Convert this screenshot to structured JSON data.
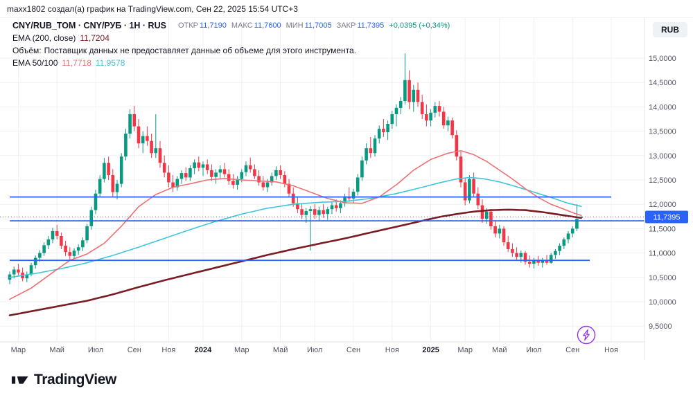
{
  "topbar": {
    "text": "maxx1802 создал(а) график на TradingView.com, Сен 22, 2025 15:54 UTC+3"
  },
  "header": {
    "symbol": "CNY/RUB_TOM · CNY/РУБ · 1Н · RUS",
    "ohlc": [
      {
        "label": "ОТКР",
        "value": "11,7190"
      },
      {
        "label": "МАКС",
        "value": "11,7600"
      },
      {
        "label": "МИН",
        "value": "11,7005"
      },
      {
        "label": "ЗАКР",
        "value": "11,7395"
      }
    ],
    "change": "+0,0395 (+0,34%)",
    "ema200": {
      "label": "EMA (200, close)",
      "value": "11,7204"
    },
    "volume": {
      "label": "Объём:",
      "message": "Поставщик данных не предоставляет данные об объеме для этого инструмента."
    },
    "ema50100": {
      "label": "EMA 50/100",
      "value50": "11,7718",
      "value100": "11,9578"
    }
  },
  "axis": {
    "currency_button": "RUB"
  },
  "footer": {
    "brand": "TradingView"
  },
  "icons": {
    "lightning_button": "lightning-bolt-in-circle",
    "logo_mark": "tradingview-logomark"
  },
  "colors": {
    "up": "#089981",
    "down": "#f23645",
    "accent_blue": "#2962ff",
    "accent_purple": "#9333ea",
    "ema50": "#ee7073",
    "ema100": "#3ec6da",
    "ema200": "#7a1c24",
    "grid": "#eef0f6",
    "axis_text": "#50535e",
    "axis_line": "#e0e3eb"
  },
  "chart_data": {
    "type": "candlestick",
    "symbol": "CNY/RUB_TOM",
    "timeframe": "1Н",
    "ylim": [
      9.2,
      15.4
    ],
    "grid": true,
    "last_price": 11.7395,
    "last_price_label": "11,7395",
    "y_ticks": [
      {
        "label": "15,0000",
        "value": 15.0
      },
      {
        "label": "14,5000",
        "value": 14.5
      },
      {
        "label": "14,0000",
        "value": 14.0
      },
      {
        "label": "13,5000",
        "value": 13.5
      },
      {
        "label": "13,0000",
        "value": 13.0
      },
      {
        "label": "12,5000",
        "value": 12.5
      },
      {
        "label": "12,0000",
        "value": 12.0
      },
      {
        "label": "11,5000",
        "value": 11.5
      },
      {
        "label": "11,0000",
        "value": 11.0
      },
      {
        "label": "10,5000",
        "value": 10.5
      },
      {
        "label": "10,0000",
        "value": 10.0
      },
      {
        "label": "9,5000",
        "value": 9.5
      }
    ],
    "x_labels": [
      {
        "label": "Мар",
        "idx": 2
      },
      {
        "label": "Май",
        "idx": 11
      },
      {
        "label": "Июл",
        "idx": 20
      },
      {
        "label": "Сен",
        "idx": 29
      },
      {
        "label": "Ноя",
        "idx": 37
      },
      {
        "label": "2024",
        "idx": 45
      },
      {
        "label": "Мар",
        "idx": 54
      },
      {
        "label": "Май",
        "idx": 63
      },
      {
        "label": "Июл",
        "idx": 71
      },
      {
        "label": "Сен",
        "idx": 80
      },
      {
        "label": "Ноя",
        "idx": 89
      },
      {
        "label": "2025",
        "idx": 98
      },
      {
        "label": "Мар",
        "idx": 106
      },
      {
        "label": "Май",
        "idx": 114
      },
      {
        "label": "Июл",
        "idx": 122
      },
      {
        "label": "Сен",
        "idx": 131
      },
      {
        "label": "Ноя",
        "idx": 140
      }
    ],
    "candles": [
      [
        10.45,
        10.62,
        10.36,
        10.56
      ],
      [
        10.56,
        10.72,
        10.48,
        10.66
      ],
      [
        10.66,
        10.78,
        10.54,
        10.6
      ],
      [
        10.6,
        10.7,
        10.42,
        10.48
      ],
      [
        10.48,
        10.62,
        10.4,
        10.56
      ],
      [
        10.56,
        10.8,
        10.52,
        10.75
      ],
      [
        10.75,
        10.95,
        10.68,
        10.9
      ],
      [
        10.9,
        11.06,
        10.82,
        11.0
      ],
      [
        11.0,
        11.22,
        10.94,
        11.16
      ],
      [
        11.16,
        11.35,
        11.08,
        11.28
      ],
      [
        11.28,
        11.52,
        11.2,
        11.45
      ],
      [
        11.45,
        11.58,
        11.28,
        11.35
      ],
      [
        11.35,
        11.42,
        11.08,
        11.15
      ],
      [
        11.15,
        11.25,
        10.94,
        11.02
      ],
      [
        11.02,
        11.12,
        10.86,
        10.94
      ],
      [
        10.94,
        11.1,
        10.88,
        11.05
      ],
      [
        11.05,
        11.18,
        10.96,
        11.12
      ],
      [
        11.12,
        11.32,
        11.04,
        11.26
      ],
      [
        11.26,
        11.6,
        11.2,
        11.55
      ],
      [
        11.55,
        11.95,
        11.48,
        11.88
      ],
      [
        11.88,
        12.3,
        11.8,
        12.22
      ],
      [
        12.22,
        12.6,
        12.15,
        12.52
      ],
      [
        12.52,
        12.95,
        12.45,
        12.85
      ],
      [
        12.85,
        12.98,
        12.5,
        12.6
      ],
      [
        12.6,
        12.72,
        12.15,
        12.25
      ],
      [
        12.25,
        12.5,
        12.1,
        12.42
      ],
      [
        12.42,
        13.05,
        12.35,
        12.98
      ],
      [
        12.98,
        13.55,
        12.9,
        13.45
      ],
      [
        13.45,
        13.95,
        13.35,
        13.85
      ],
      [
        13.85,
        14.02,
        13.5,
        13.6
      ],
      [
        13.6,
        13.75,
        13.15,
        13.25
      ],
      [
        13.25,
        13.5,
        13.05,
        13.4
      ],
      [
        13.4,
        13.6,
        13.2,
        13.3
      ],
      [
        13.3,
        13.45,
        12.95,
        13.05
      ],
      [
        13.05,
        13.85,
        12.95,
        13.15
      ],
      [
        13.15,
        13.3,
        12.75,
        12.85
      ],
      [
        12.85,
        13.0,
        12.55,
        12.65
      ],
      [
        12.65,
        12.8,
        12.35,
        12.45
      ],
      [
        12.45,
        12.6,
        12.25,
        12.35
      ],
      [
        12.35,
        12.58,
        12.28,
        12.52
      ],
      [
        12.52,
        12.7,
        12.42,
        12.64
      ],
      [
        12.64,
        12.76,
        12.48,
        12.55
      ],
      [
        12.55,
        12.8,
        12.48,
        12.74
      ],
      [
        12.74,
        12.92,
        12.62,
        12.86
      ],
      [
        12.86,
        12.98,
        12.68,
        12.75
      ],
      [
        12.75,
        12.88,
        12.58,
        12.82
      ],
      [
        12.82,
        12.92,
        12.62,
        12.7
      ],
      [
        12.7,
        12.82,
        12.48,
        12.56
      ],
      [
        12.56,
        12.72,
        12.42,
        12.65
      ],
      [
        12.65,
        12.8,
        12.52,
        12.72
      ],
      [
        12.72,
        12.85,
        12.55,
        12.62
      ],
      [
        12.62,
        12.72,
        12.4,
        12.48
      ],
      [
        12.48,
        12.62,
        12.32,
        12.4
      ],
      [
        12.4,
        12.58,
        12.3,
        12.52
      ],
      [
        12.52,
        12.72,
        12.45,
        12.66
      ],
      [
        12.66,
        12.88,
        12.58,
        12.8
      ],
      [
        12.8,
        12.96,
        12.65,
        12.72
      ],
      [
        12.72,
        12.82,
        12.52,
        12.58
      ],
      [
        12.58,
        12.7,
        12.38,
        12.45
      ],
      [
        12.45,
        12.58,
        12.28,
        12.35
      ],
      [
        12.35,
        12.52,
        12.25,
        12.45
      ],
      [
        12.45,
        12.65,
        12.38,
        12.58
      ],
      [
        12.58,
        12.78,
        12.5,
        12.7
      ],
      [
        12.7,
        12.8,
        12.52,
        12.6
      ],
      [
        12.6,
        12.68,
        12.35,
        12.42
      ],
      [
        12.42,
        12.52,
        12.15,
        12.22
      ],
      [
        12.22,
        12.35,
        11.95,
        12.02
      ],
      [
        12.02,
        12.15,
        11.82,
        11.9
      ],
      [
        11.9,
        12.02,
        11.7,
        11.78
      ],
      [
        11.78,
        11.92,
        11.62,
        11.86
      ],
      [
        11.86,
        11.96,
        11.05,
        11.9
      ],
      [
        11.9,
        12.0,
        11.7,
        11.78
      ],
      [
        11.78,
        11.95,
        11.65,
        11.88
      ],
      [
        11.88,
        12.0,
        11.72,
        11.8
      ],
      [
        11.8,
        11.95,
        11.68,
        11.9
      ],
      [
        11.9,
        12.05,
        11.8,
        11.98
      ],
      [
        11.98,
        12.1,
        11.85,
        11.92
      ],
      [
        11.92,
        12.08,
        11.82,
        12.02
      ],
      [
        12.02,
        12.22,
        11.95,
        12.16
      ],
      [
        12.16,
        12.35,
        12.05,
        12.12
      ],
      [
        12.12,
        12.32,
        12.02,
        12.26
      ],
      [
        12.26,
        12.62,
        12.18,
        12.55
      ],
      [
        12.55,
        12.98,
        12.48,
        12.9
      ],
      [
        12.9,
        13.25,
        12.82,
        13.15
      ],
      [
        13.15,
        13.38,
        12.95,
        13.05
      ],
      [
        13.05,
        13.42,
        12.98,
        13.35
      ],
      [
        13.35,
        13.62,
        13.25,
        13.55
      ],
      [
        13.55,
        13.75,
        13.38,
        13.48
      ],
      [
        13.48,
        13.72,
        13.32,
        13.65
      ],
      [
        13.65,
        13.92,
        13.55,
        13.85
      ],
      [
        13.85,
        14.05,
        13.6,
        13.98
      ],
      [
        13.98,
        14.2,
        13.85,
        14.12
      ],
      [
        14.12,
        15.1,
        14.05,
        14.55
      ],
      [
        14.55,
        14.75,
        13.95,
        14.1
      ],
      [
        14.1,
        14.45,
        13.9,
        14.35
      ],
      [
        14.35,
        14.5,
        14.0,
        14.1
      ],
      [
        14.1,
        14.25,
        13.75,
        13.85
      ],
      [
        13.85,
        14.05,
        13.6,
        13.72
      ],
      [
        13.72,
        13.95,
        13.6,
        13.88
      ],
      [
        13.88,
        14.1,
        13.78,
        14.02
      ],
      [
        14.02,
        14.12,
        13.8,
        13.9
      ],
      [
        13.9,
        14.0,
        13.55,
        13.62
      ],
      [
        13.62,
        13.8,
        13.5,
        13.72
      ],
      [
        13.72,
        13.78,
        13.35,
        13.42
      ],
      [
        13.42,
        13.52,
        12.9,
        12.98
      ],
      [
        12.98,
        13.08,
        12.35,
        12.45
      ],
      [
        12.45,
        12.55,
        11.98,
        12.08
      ],
      [
        12.08,
        12.6,
        12.02,
        12.52
      ],
      [
        12.52,
        12.65,
        12.15,
        12.22
      ],
      [
        12.22,
        12.35,
        11.9,
        11.98
      ],
      [
        11.98,
        12.1,
        11.62,
        11.7
      ],
      [
        11.7,
        11.92,
        11.6,
        11.85
      ],
      [
        11.85,
        11.9,
        11.48,
        11.55
      ],
      [
        11.55,
        11.65,
        11.32,
        11.4
      ],
      [
        11.4,
        11.58,
        11.3,
        11.5
      ],
      [
        11.5,
        11.55,
        11.15,
        11.22
      ],
      [
        11.22,
        11.35,
        11.02,
        11.08
      ],
      [
        11.08,
        11.2,
        10.92,
        11.0
      ],
      [
        11.0,
        11.12,
        10.85,
        10.92
      ],
      [
        10.92,
        11.05,
        10.8,
        11.0
      ],
      [
        11.0,
        11.04,
        10.76,
        10.82
      ],
      [
        10.82,
        10.95,
        10.7,
        10.78
      ],
      [
        10.78,
        10.9,
        10.68,
        10.86
      ],
      [
        10.86,
        10.94,
        10.74,
        10.8
      ],
      [
        10.8,
        10.9,
        10.7,
        10.85
      ],
      [
        10.85,
        10.96,
        10.76,
        10.8
      ],
      [
        10.8,
        11.0,
        10.78,
        10.96
      ],
      [
        10.96,
        11.08,
        10.88,
        11.04
      ],
      [
        11.04,
        11.2,
        10.96,
        11.15
      ],
      [
        11.15,
        11.32,
        11.08,
        11.28
      ],
      [
        11.28,
        11.45,
        11.2,
        11.4
      ],
      [
        11.4,
        11.55,
        11.32,
        11.5
      ],
      [
        11.5,
        12.0,
        11.45,
        11.7
      ],
      [
        11.719,
        11.76,
        11.7005,
        11.7395
      ]
    ],
    "emas": {
      "ema50": {
        "name": "EMA 50",
        "color": "#ee7073",
        "last_value": 11.7718,
        "points": [
          [
            0,
            10.05
          ],
          [
            5,
            10.28
          ],
          [
            10,
            10.6
          ],
          [
            14,
            10.85
          ],
          [
            18,
            10.98
          ],
          [
            22,
            11.2
          ],
          [
            26,
            11.55
          ],
          [
            30,
            11.95
          ],
          [
            34,
            12.2
          ],
          [
            38,
            12.35
          ],
          [
            42,
            12.42
          ],
          [
            46,
            12.5
          ],
          [
            50,
            12.53
          ],
          [
            54,
            12.5
          ],
          [
            58,
            12.48
          ],
          [
            62,
            12.46
          ],
          [
            66,
            12.38
          ],
          [
            70,
            12.25
          ],
          [
            74,
            12.12
          ],
          [
            78,
            12.03
          ],
          [
            82,
            12.02
          ],
          [
            86,
            12.15
          ],
          [
            90,
            12.4
          ],
          [
            94,
            12.7
          ],
          [
            98,
            12.92
          ],
          [
            102,
            13.05
          ],
          [
            105,
            13.1
          ],
          [
            108,
            13.02
          ],
          [
            111,
            12.88
          ],
          [
            114,
            12.7
          ],
          [
            117,
            12.52
          ],
          [
            120,
            12.32
          ],
          [
            123,
            12.14
          ],
          [
            126,
            12.0
          ],
          [
            129,
            11.9
          ],
          [
            131,
            11.83
          ],
          [
            133,
            11.772
          ]
        ]
      },
      "ema100": {
        "name": "EMA 100",
        "color": "#3ec6da",
        "last_value": 11.9578,
        "points": [
          [
            0,
            10.5
          ],
          [
            6,
            10.58
          ],
          [
            12,
            10.68
          ],
          [
            18,
            10.8
          ],
          [
            24,
            10.95
          ],
          [
            30,
            11.12
          ],
          [
            36,
            11.3
          ],
          [
            42,
            11.48
          ],
          [
            48,
            11.65
          ],
          [
            54,
            11.8
          ],
          [
            60,
            11.92
          ],
          [
            66,
            12.0
          ],
          [
            72,
            12.04
          ],
          [
            78,
            12.06
          ],
          [
            84,
            12.12
          ],
          [
            90,
            12.22
          ],
          [
            96,
            12.35
          ],
          [
            100,
            12.44
          ],
          [
            104,
            12.52
          ],
          [
            107,
            12.55
          ],
          [
            110,
            12.53
          ],
          [
            114,
            12.46
          ],
          [
            118,
            12.36
          ],
          [
            122,
            12.25
          ],
          [
            126,
            12.14
          ],
          [
            130,
            12.02
          ],
          [
            133,
            11.958
          ]
        ]
      },
      "ema200": {
        "name": "EMA 200",
        "color": "#7a1c24",
        "last_value": 11.7204,
        "points": [
          [
            0,
            9.72
          ],
          [
            6,
            9.82
          ],
          [
            12,
            9.92
          ],
          [
            18,
            10.02
          ],
          [
            24,
            10.15
          ],
          [
            30,
            10.3
          ],
          [
            36,
            10.44
          ],
          [
            42,
            10.57
          ],
          [
            48,
            10.7
          ],
          [
            54,
            10.83
          ],
          [
            60,
            10.96
          ],
          [
            66,
            11.08
          ],
          [
            72,
            11.19
          ],
          [
            78,
            11.3
          ],
          [
            84,
            11.42
          ],
          [
            90,
            11.54
          ],
          [
            96,
            11.66
          ],
          [
            100,
            11.74
          ],
          [
            104,
            11.8
          ],
          [
            108,
            11.85
          ],
          [
            112,
            11.88
          ],
          [
            116,
            11.89
          ],
          [
            120,
            11.88
          ],
          [
            124,
            11.84
          ],
          [
            127,
            11.8
          ],
          [
            130,
            11.76
          ],
          [
            133,
            11.72
          ]
        ]
      }
    },
    "hlines": [
      {
        "price": 12.15,
        "from": 0,
        "to": 140
      },
      {
        "price": 11.66,
        "from": 0,
        "to": 148
      },
      {
        "price": 10.85,
        "from": 0,
        "to": 135
      }
    ]
  }
}
